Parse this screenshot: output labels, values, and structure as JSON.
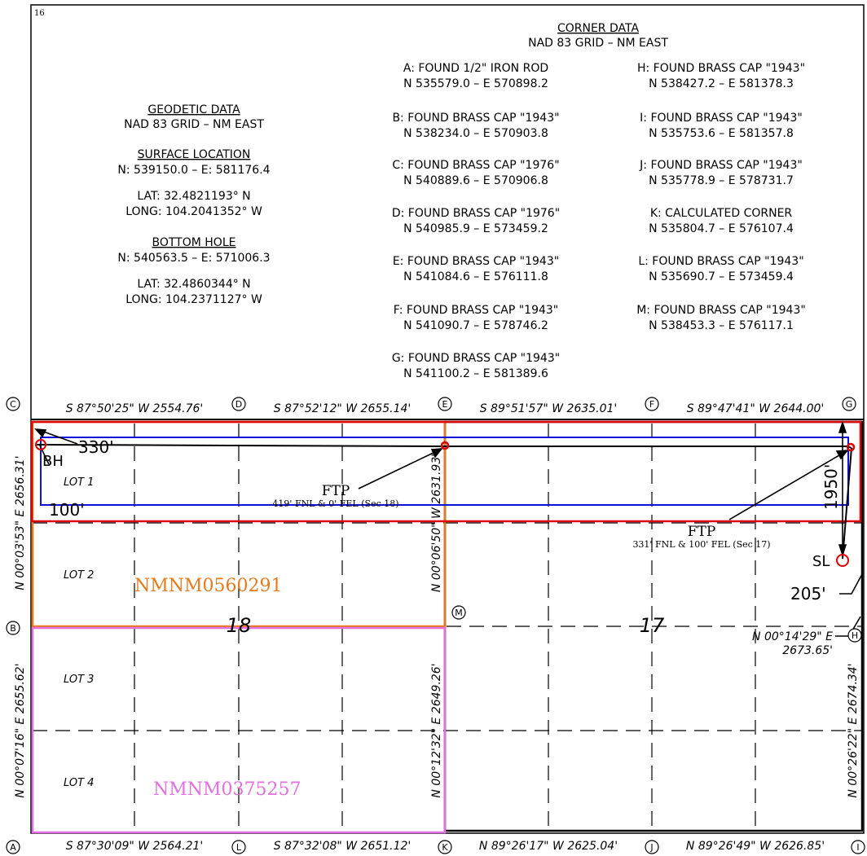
{
  "page_number": "16",
  "corner_data": {
    "title": "CORNER DATA",
    "subtitle": "NAD 83 GRID – NM EAST",
    "left_column": [
      {
        "line1": "A: FOUND 1/2\" IRON ROD",
        "line2": "N 535579.0 – E 570898.2"
      },
      {
        "line1": "B: FOUND BRASS CAP \"1943\"",
        "line2": "N 538234.0 – E 570903.8"
      },
      {
        "line1": "C: FOUND BRASS CAP \"1976\"",
        "line2": "N 540889.6 – E 570906.8"
      },
      {
        "line1": "D: FOUND BRASS CAP \"1976\"",
        "line2": "N 540985.9 – E 573459.2"
      },
      {
        "line1": "E: FOUND BRASS CAP \"1943\"",
        "line2": "N 541084.6 – E 576111.8"
      },
      {
        "line1": "F: FOUND BRASS CAP \"1943\"",
        "line2": "N 541090.7 – E 578746.2"
      },
      {
        "line1": "G: FOUND BRASS CAP \"1943\"",
        "line2": "N 541100.2 – E 581389.6"
      }
    ],
    "right_column": [
      {
        "line1": "H: FOUND BRASS CAP \"1943\"",
        "line2": "N 538427.2 – E 581378.3"
      },
      {
        "line1": "I: FOUND BRASS CAP \"1943\"",
        "line2": "N 535753.6 – E 581357.8"
      },
      {
        "line1": "J: FOUND BRASS CAP \"1943\"",
        "line2": "N 535778.9 – E 578731.7"
      },
      {
        "line1": "K: CALCULATED CORNER",
        "line2": "N 535804.7 – E 576107.4"
      },
      {
        "line1": "L: FOUND BRASS CAP \"1943\"",
        "line2": "N 535690.7 – E 573459.4"
      },
      {
        "line1": "M: FOUND BRASS CAP \"1943\"",
        "line2": "N 538453.3 – E 576117.1"
      }
    ]
  },
  "geodetic_data": {
    "title": "GEODETIC DATA",
    "subtitle": "NAD 83 GRID – NM EAST",
    "surface_location": {
      "title": "SURFACE LOCATION",
      "coords": "N: 539150.0 – E: 581176.4",
      "lat": "LAT: 32.4821193° N",
      "long": "LONG: 104.2041352° W"
    },
    "bottom_hole": {
      "title": "BOTTOM HOLE",
      "coords": "N: 540563.5 – E: 571006.3",
      "lat": "LAT: 32.4860344° N",
      "long": "LONG: 104.2371127° W"
    }
  },
  "corners": {
    "A": "A",
    "B": "B",
    "C": "C",
    "D": "D",
    "E": "E",
    "F": "F",
    "G": "G",
    "H": "H",
    "I": "I",
    "J": "J",
    "K": "K",
    "L": "L",
    "M": "M"
  },
  "bearings": {
    "top_CD": "S 87°50'25\" W 2554.76'",
    "top_DE": "S 87°52'12\" W 2655.14'",
    "top_EF": "S 89°51'57\" W 2635.01'",
    "top_FG": "S 89°47'41\" W 2644.00'",
    "bottom_AL": "S 87°30'09\" W 2564.21'",
    "bottom_LK": "S 87°32'08\" W 2651.12'",
    "bottom_KJ": "N 89°26'17\" W 2625.04'",
    "bottom_JI": "N 89°26'49\" W 2626.85'",
    "left_BC": "N 00°03'53\" E 2656.31'",
    "left_AB": "N 00°07'16\" E 2655.62'",
    "mid_EM": "N 00°06'50\" W 2631.93'",
    "mid_MK": "N 00°12'32\" E 2649.26'",
    "right_HG_line1": "N 00°14'29\" E",
    "right_HG_line2": "2673.65'",
    "right_IH": "N 00°26'22\" E 2674.34'"
  },
  "labels": {
    "lot1": "LOT 1",
    "lot2": "LOT 2",
    "lot3": "LOT 3",
    "lot4": "LOT 4",
    "sec18": "18",
    "sec17": "17",
    "lease1": "NMNM0560291",
    "lease2": "NMNM0375257",
    "bh": "BH",
    "sl": "SL",
    "dim330": "330'",
    "dim100": "100'",
    "dim1950": "1950'",
    "dim205": "205'",
    "ftp1_title": "FTP",
    "ftp1_note": "419' FNL & 0' FEL (Sec 18)",
    "ftp2_title": "FTP",
    "ftp2_note": "331' FNL & 100' FEL (Sec 17)"
  },
  "colors": {
    "lease1": "#e87a1e",
    "lease2": "#e36fe0",
    "spacing_unit": "#e00000",
    "setback": "#1010d8",
    "line": "#000000"
  }
}
